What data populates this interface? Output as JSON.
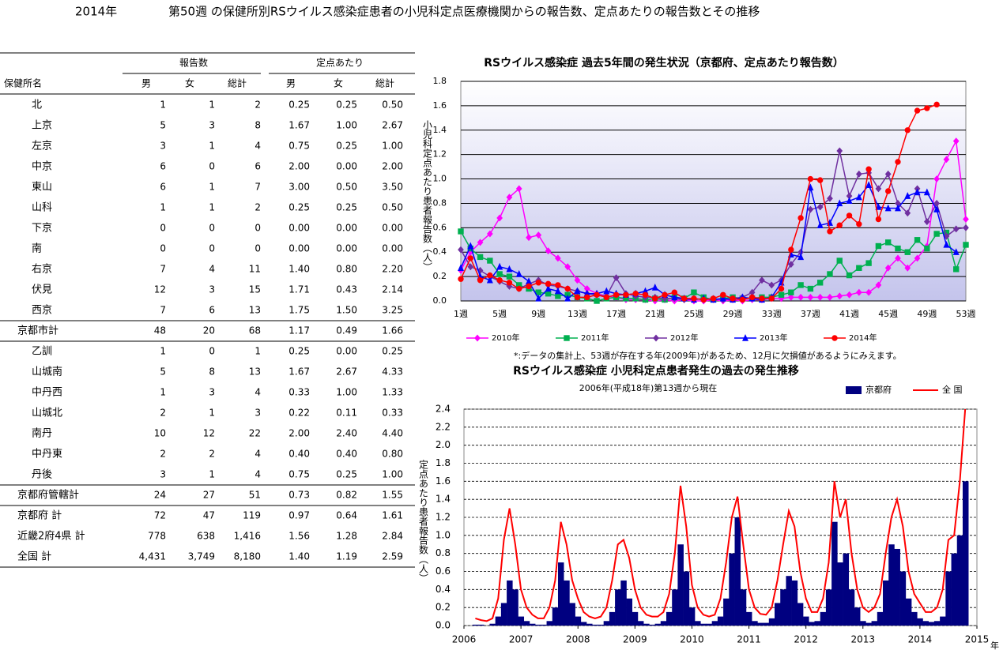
{
  "header": {
    "year": "2014年",
    "title": "第50週 の保健所別RSウイルス感染症患者の小児科定点医療機関からの報告数、定点あたりの報告数とその推移"
  },
  "table": {
    "group_headers": [
      "報告数",
      "定点あたり"
    ],
    "columns": [
      "保健所名",
      "男",
      "女",
      "総計",
      "男",
      "女",
      "総計"
    ],
    "rows": [
      [
        "北",
        "1",
        "1",
        "2",
        "0.25",
        "0.25",
        "0.50"
      ],
      [
        "上京",
        "5",
        "3",
        "8",
        "1.67",
        "1.00",
        "2.67"
      ],
      [
        "左京",
        "3",
        "1",
        "4",
        "0.75",
        "0.25",
        "1.00"
      ],
      [
        "中京",
        "6",
        "0",
        "6",
        "2.00",
        "0.00",
        "2.00"
      ],
      [
        "東山",
        "6",
        "1",
        "7",
        "3.00",
        "0.50",
        "3.50"
      ],
      [
        "山科",
        "1",
        "1",
        "2",
        "0.25",
        "0.25",
        "0.50"
      ],
      [
        "下京",
        "0",
        "0",
        "0",
        "0.00",
        "0.00",
        "0.00"
      ],
      [
        "南",
        "0",
        "0",
        "0",
        "0.00",
        "0.00",
        "0.00"
      ],
      [
        "右京",
        "7",
        "4",
        "11",
        "1.40",
        "0.80",
        "2.20"
      ],
      [
        "伏見",
        "12",
        "3",
        "15",
        "1.71",
        "0.43",
        "2.14"
      ],
      [
        "西京",
        "7",
        "6",
        "13",
        "1.75",
        "1.50",
        "3.25"
      ],
      [
        "京都市計",
        "48",
        "20",
        "68",
        "1.17",
        "0.49",
        "1.66"
      ],
      [
        "乙訓",
        "1",
        "0",
        "1",
        "0.25",
        "0.00",
        "0.25"
      ],
      [
        "山城南",
        "5",
        "8",
        "13",
        "1.67",
        "2.67",
        "4.33"
      ],
      [
        "中丹西",
        "1",
        "3",
        "4",
        "0.33",
        "1.00",
        "1.33"
      ],
      [
        "山城北",
        "2",
        "1",
        "3",
        "0.22",
        "0.11",
        "0.33"
      ],
      [
        "南丹",
        "10",
        "12",
        "22",
        "2.00",
        "2.40",
        "4.40"
      ],
      [
        "中丹東",
        "2",
        "2",
        "4",
        "0.40",
        "0.40",
        "0.80"
      ],
      [
        "丹後",
        "3",
        "1",
        "4",
        "0.75",
        "0.25",
        "1.00"
      ],
      [
        "京都府管轄計",
        "24",
        "27",
        "51",
        "0.73",
        "0.82",
        "1.55"
      ],
      [
        "京都府 計",
        "72",
        "47",
        "119",
        "0.97",
        "0.64",
        "1.61"
      ],
      [
        "近畿2府4県 計",
        "778",
        "638",
        "1,416",
        "1.56",
        "1.28",
        "2.84"
      ],
      [
        "全国 計",
        "4,431",
        "3,749",
        "8,180",
        "1.40",
        "1.19",
        "2.59"
      ]
    ]
  },
  "chart_data": [
    {
      "type": "line",
      "title": "RSウイルス感染症 過去5年間の発生状況（京都府、定点あたり報告数）",
      "ylabel": "小児科定点あたり患者報告数（人）",
      "note": "*:データの集計上、53週が存在する年(2009年)があるため、12月に欠損値があるようにみえます。",
      "categories": [
        "1週",
        null,
        null,
        null,
        "5週",
        null,
        null,
        null,
        "9週",
        null,
        null,
        null,
        "13週",
        null,
        null,
        null,
        "17週",
        null,
        null,
        null,
        "21週",
        null,
        null,
        null,
        "25週",
        null,
        null,
        null,
        "29週",
        null,
        null,
        null,
        "33週",
        null,
        null,
        null,
        "37週",
        null,
        null,
        null,
        "41週",
        null,
        null,
        null,
        "45週",
        null,
        null,
        null,
        "49週",
        null,
        null,
        null,
        "53週"
      ],
      "ylim": [
        0,
        1.8
      ],
      "yticks": [
        {
          "value": 0,
          "label": "0.0"
        },
        0.2,
        0.4,
        0.6,
        0.8,
        {
          "value": 1,
          "label": "1.0"
        },
        1.2,
        1.4,
        1.6,
        1.8
      ],
      "grid": true,
      "series": [
        {
          "name": "2010年",
          "color": "#ff00ff",
          "marker": "diamond",
          "values": [
            0.25,
            0.4,
            0.48,
            0.55,
            0.68,
            0.85,
            0.92,
            0.52,
            0.54,
            0.41,
            0.35,
            0.28,
            0.17,
            0.1,
            0.06,
            0.04,
            0.03,
            0.01,
            0.01,
            0.01,
            0,
            0.01,
            0,
            0.01,
            0,
            0,
            0.01,
            0,
            0.01,
            0,
            0.01,
            0.01,
            0.02,
            0.02,
            0.03,
            0.03,
            0.03,
            0.03,
            0.03,
            0.04,
            0.05,
            0.07,
            0.07,
            0.13,
            0.27,
            0.35,
            0.27,
            0.35,
            0.45,
            1.0,
            1.16,
            1.31,
            0.67
          ]
        },
        {
          "name": "2011年",
          "color": "#00b050",
          "marker": "square",
          "values": [
            0.57,
            0.43,
            0.36,
            0.33,
            0.22,
            0.2,
            0.13,
            0.1,
            0.07,
            0.06,
            0.04,
            0.05,
            0.03,
            0.02,
            0,
            0.02,
            0.03,
            0.02,
            0.02,
            0.01,
            0.02,
            0.01,
            0.03,
            0.02,
            0.07,
            0.03,
            0.01,
            0.02,
            0.03,
            0.02,
            0.02,
            0.03,
            0.03,
            0.05,
            0.07,
            0.13,
            0.1,
            0.15,
            0.22,
            0.33,
            0.21,
            0.27,
            0.31,
            0.45,
            0.48,
            0.43,
            0.4,
            0.5,
            0.43,
            0.55,
            0.56,
            0.26,
            0.46
          ]
        },
        {
          "name": "2012年",
          "color": "#7030a0",
          "marker": "diamond",
          "values": [
            0.42,
            0.28,
            0.25,
            0.2,
            0.16,
            0.12,
            0.1,
            0.14,
            0.17,
            0.13,
            0.12,
            0.1,
            0.08,
            0.06,
            0.05,
            0.04,
            0.19,
            0.06,
            0.04,
            0.03,
            0.03,
            0.02,
            0.02,
            0.01,
            0.02,
            0.01,
            0.02,
            0.01,
            0.02,
            0.03,
            0.07,
            0.17,
            0.13,
            0.17,
            0.3,
            0.4,
            0.75,
            0.77,
            0.84,
            1.23,
            0.86,
            1.04,
            1.05,
            0.92,
            1.04,
            0.8,
            0.72,
            0.92,
            0.65,
            0.8,
            0.53,
            0.59,
            0.6
          ]
        },
        {
          "name": "2013年",
          "color": "#0000ff",
          "marker": "triangle",
          "values": [
            0.27,
            0.45,
            0.2,
            0.17,
            0.28,
            0.26,
            0.22,
            0.16,
            0.02,
            0.1,
            0.08,
            0.02,
            0.08,
            0.06,
            0.06,
            0.08,
            0.06,
            0.05,
            0.06,
            0.08,
            0.11,
            0.05,
            0.03,
            0.02,
            0.01,
            0.02,
            0.01,
            0.02,
            0.01,
            0.03,
            0.02,
            0.01,
            0.03,
            0.15,
            0.38,
            0.36,
            0.93,
            0.62,
            0.64,
            0.8,
            0.82,
            0.85,
            0.95,
            0.77,
            0.76,
            0.76,
            0.86,
            0.89,
            0.89,
            0.75,
            0.46,
            0.4,
            null
          ]
        },
        {
          "name": "2014年",
          "color": "#ff0000",
          "marker": "circle",
          "values": [
            0.18,
            0.35,
            0.17,
            0.21,
            0.17,
            0.15,
            0.1,
            0.12,
            0.15,
            0.14,
            0.13,
            0.1,
            0.03,
            0.03,
            0.05,
            0.03,
            0.05,
            0.05,
            0.06,
            0.05,
            0.02,
            0.05,
            0.07,
            0.02,
            0.02,
            0.01,
            0.02,
            0.05,
            0.02,
            0.01,
            0.03,
            0.02,
            0.02,
            0.1,
            0.42,
            0.68,
            1.0,
            0.99,
            0.57,
            0.62,
            0.7,
            0.63,
            1.08,
            0.67,
            0.9,
            1.14,
            1.4,
            1.56,
            1.58,
            1.61,
            null,
            null,
            null
          ]
        }
      ]
    },
    {
      "type": "combo",
      "title": "RSウイルス感染症  小児科定点患者発生の過去の発生推移",
      "subtitle": "2006年(平成18年)第13週から現在",
      "ylabel": "定点あたり患者報告数（人）",
      "xlabel": "年",
      "xlim": [
        2006,
        2015
      ],
      "xticks": [
        2006,
        2007,
        2008,
        2009,
        2010,
        2011,
        2012,
        2013,
        2014,
        2015
      ],
      "ylim": [
        0,
        2.4
      ],
      "yticks": [
        {
          "value": 0,
          "label": "0.0"
        },
        0.2,
        0.4,
        0.6,
        0.8,
        {
          "value": 1,
          "label": "1.0"
        },
        1.2,
        1.4,
        1.6,
        1.8,
        {
          "value": 2,
          "label": "2.0"
        },
        2.2,
        2.4
      ],
      "grid": true,
      "x": [
        2006.2,
        2006.3,
        2006.4,
        2006.5,
        2006.6,
        2006.7,
        2006.8,
        2006.9,
        2007.0,
        2007.1,
        2007.2,
        2007.3,
        2007.4,
        2007.5,
        2007.6,
        2007.7,
        2007.8,
        2007.9,
        2008.0,
        2008.1,
        2008.2,
        2008.3,
        2008.4,
        2008.5,
        2008.6,
        2008.7,
        2008.8,
        2008.9,
        2009.0,
        2009.1,
        2009.2,
        2009.3,
        2009.4,
        2009.5,
        2009.6,
        2009.7,
        2009.8,
        2009.9,
        2010.0,
        2010.1,
        2010.2,
        2010.3,
        2010.4,
        2010.5,
        2010.6,
        2010.7,
        2010.8,
        2010.9,
        2011.0,
        2011.1,
        2011.2,
        2011.3,
        2011.4,
        2011.5,
        2011.6,
        2011.7,
        2011.8,
        2011.9,
        2012.0,
        2012.1,
        2012.2,
        2012.3,
        2012.4,
        2012.5,
        2012.6,
        2012.7,
        2012.8,
        2012.9,
        2013.0,
        2013.1,
        2013.2,
        2013.3,
        2013.4,
        2013.5,
        2013.6,
        2013.7,
        2013.8,
        2013.9,
        2014.0,
        2014.1,
        2014.2,
        2014.3,
        2014.4,
        2014.5,
        2014.6,
        2014.7,
        2014.8
      ],
      "series": [
        {
          "name": "京都府",
          "type": "bar",
          "color": "#000080",
          "values": [
            0.01,
            0.01,
            0,
            0.02,
            0.1,
            0.25,
            0.5,
            0.4,
            0.1,
            0.05,
            0.02,
            0.01,
            0.01,
            0.05,
            0.2,
            0.7,
            0.5,
            0.25,
            0.1,
            0.04,
            0.02,
            0.01,
            0.01,
            0.05,
            0.15,
            0.4,
            0.5,
            0.3,
            0.15,
            0.05,
            0.02,
            0.01,
            0.02,
            0.05,
            0.15,
            0.4,
            0.9,
            0.6,
            0.2,
            0.05,
            0.02,
            0.02,
            0.05,
            0.1,
            0.3,
            0.8,
            1.2,
            0.4,
            0.15,
            0.05,
            0.03,
            0.03,
            0.08,
            0.25,
            0.4,
            0.55,
            0.5,
            0.25,
            0.1,
            0.04,
            0.05,
            0.15,
            0.4,
            1.15,
            0.7,
            0.8,
            0.4,
            0.2,
            0.05,
            0.03,
            0.05,
            0.15,
            0.5,
            0.9,
            0.85,
            0.6,
            0.3,
            0.15,
            0.08,
            0.05,
            0.04,
            0.05,
            0.1,
            0.6,
            0.8,
            1.0,
            1.6
          ]
        },
        {
          "name": "全 国",
          "type": "line",
          "color": "#ff0000",
          "values": [
            0.08,
            0.06,
            0.05,
            0.08,
            0.3,
            0.95,
            1.3,
            0.9,
            0.4,
            0.2,
            0.12,
            0.08,
            0.08,
            0.2,
            0.5,
            1.15,
            0.9,
            0.5,
            0.3,
            0.15,
            0.1,
            0.08,
            0.1,
            0.2,
            0.5,
            0.9,
            0.95,
            0.75,
            0.4,
            0.2,
            0.12,
            0.1,
            0.1,
            0.15,
            0.35,
            0.8,
            1.55,
            1.1,
            0.45,
            0.2,
            0.12,
            0.1,
            0.12,
            0.3,
            0.7,
            1.2,
            1.43,
            0.9,
            0.4,
            0.2,
            0.13,
            0.12,
            0.2,
            0.5,
            0.9,
            1.27,
            1.1,
            0.6,
            0.3,
            0.15,
            0.15,
            0.3,
            0.7,
            1.6,
            1.2,
            1.4,
            0.8,
            0.4,
            0.2,
            0.15,
            0.2,
            0.35,
            0.8,
            1.2,
            1.4,
            1.1,
            0.6,
            0.35,
            0.25,
            0.15,
            0.15,
            0.2,
            0.4,
            0.95,
            1.0,
            1.6,
            2.45
          ]
        }
      ]
    }
  ]
}
